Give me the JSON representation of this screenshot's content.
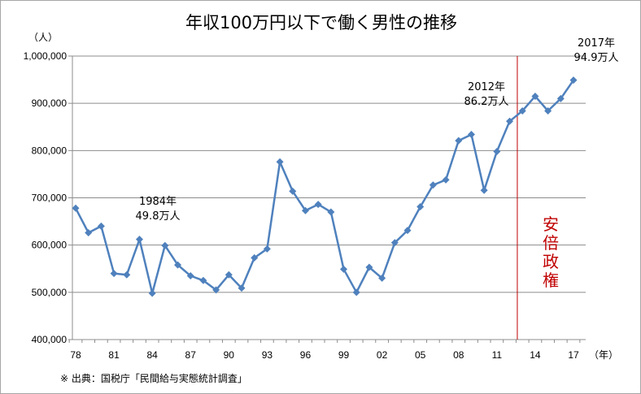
{
  "chart_data": {
    "type": "line",
    "title": "年収100万円以下で働く男性の推移",
    "y_unit_label": "（人）",
    "x_unit_label": "（年）",
    "ylim": [
      400000,
      1000000
    ],
    "y_ticks": [
      400000,
      500000,
      600000,
      700000,
      800000,
      900000,
      1000000
    ],
    "y_tick_labels": [
      "400,000",
      "500,000",
      "600,000",
      "700,000",
      "800,000",
      "900,000",
      "1,000,000"
    ],
    "grid": true,
    "x_range": [
      1978,
      2017
    ],
    "x_ticks": [
      1978,
      1981,
      1984,
      1987,
      1990,
      1993,
      1996,
      1999,
      2002,
      2005,
      2008,
      2011,
      2014,
      2017
    ],
    "x_tick_labels": [
      "78",
      "81",
      "84",
      "87",
      "90",
      "93",
      "96",
      "99",
      "02",
      "05",
      "08",
      "11",
      "14",
      "17"
    ],
    "series": [
      {
        "color": "#4f81bd",
        "x": [
          1978,
          1979,
          1980,
          1981,
          1982,
          1983,
          1984,
          1985,
          1986,
          1987,
          1988,
          1989,
          1990,
          1991,
          1992,
          1993,
          1994,
          1995,
          1996,
          1997,
          1998,
          1999,
          2000,
          2001,
          2002,
          2003,
          2004,
          2005,
          2006,
          2007,
          2008,
          2009,
          2010,
          2011,
          2012,
          2013,
          2014,
          2015,
          2016,
          2017
        ],
        "values": [
          678000,
          626000,
          640000,
          540000,
          537000,
          612000,
          498000,
          599000,
          558000,
          535000,
          525000,
          505000,
          537000,
          509000,
          573000,
          592000,
          776000,
          714000,
          673000,
          686000,
          670000,
          549000,
          500000,
          553000,
          530000,
          605000,
          631000,
          681000,
          727000,
          738000,
          821000,
          834000,
          716000,
          798000,
          862000,
          884000,
          915000,
          884000,
          910000,
          949000
        ]
      }
    ],
    "annotations": [
      {
        "x": 1984,
        "lines": [
          "1984年",
          "49.8万人"
        ]
      },
      {
        "x": 2012,
        "lines": [
          "2012年",
          "86.2万人"
        ]
      },
      {
        "x": 2017,
        "lines": [
          "2017年",
          "94.9万人"
        ]
      }
    ],
    "event_marker": {
      "x": 2012.6,
      "color": "#c00000",
      "label": "安倍政権"
    },
    "source_note": "※ 出典：国税庁「民間給与実態統計調査」"
  }
}
